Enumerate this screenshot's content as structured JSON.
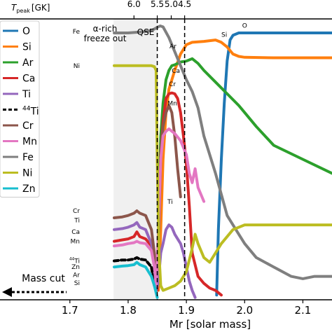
{
  "chart_data": {
    "type": "line",
    "xlabel": "Mr [solar mass]",
    "top_axis": {
      "label_base": "T",
      "label_sub": "peak",
      "label_unit": "[GK]",
      "ticks": [
        {
          "label": "6.0",
          "x": 1.81
        },
        {
          "label": "5.5",
          "x": 1.85
        },
        {
          "label": "5.0",
          "x": 1.874
        },
        {
          "label": "4.5",
          "x": 1.897
        }
      ]
    },
    "xlim": [
      1.58,
      2.15
    ],
    "x_ticks": [
      {
        "label": "1.7",
        "x": 1.7
      },
      {
        "label": "1.8",
        "x": 1.8
      },
      {
        "label": "1.9",
        "x": 1.9
      },
      {
        "label": "2.0",
        "x": 2.0
      },
      {
        "label": "2.1",
        "x": 2.1
      }
    ],
    "y_scale": "log",
    "ylim": [
      -6,
      0
    ],
    "grid": false,
    "legend_placement": "left",
    "shaded_region": {
      "x_start": 1.775,
      "x_end": 1.85,
      "color": "#f0f0f0"
    },
    "vlines": [
      1.85,
      1.897
    ],
    "region_labels": {
      "alpha_rich_line1": "α-rich",
      "alpha_rich_line2": "freeze out",
      "qse": "QSE"
    },
    "mass_cut_label": "Mass cut",
    "left_labels": [
      {
        "label": "Fe",
        "y": -0.27
      },
      {
        "label": "Ni",
        "y": -1.0
      },
      {
        "label": "Cr",
        "y": -4.1
      },
      {
        "label": "Ti",
        "y": -4.3
      },
      {
        "label": "Ca",
        "y": -4.55
      },
      {
        "label": "Mn",
        "y": -4.75
      },
      {
        "label": "44Ti",
        "y": -5.15
      },
      {
        "label": "Zn",
        "y": -5.3
      },
      {
        "label": "Ar",
        "y": -5.47
      },
      {
        "label": "Si",
        "y": -5.64
      }
    ],
    "inline_labels": [
      {
        "label": "O",
        "x": 2.0,
        "y": -0.19
      },
      {
        "label": "Si",
        "x": 1.965,
        "y": -0.38
      },
      {
        "label": "Ar",
        "x": 1.877,
        "y": -0.63
      },
      {
        "label": "Ca",
        "x": 1.882,
        "y": -1.15
      },
      {
        "label": "Cr",
        "x": 1.876,
        "y": -1.44
      },
      {
        "label": "Mn",
        "x": 1.876,
        "y": -1.85
      },
      {
        "label": "Ti",
        "x": 1.872,
        "y": -3.95
      }
    ],
    "series": [
      {
        "name": "O",
        "color": "#1f77b4",
        "dashed": false,
        "x": [
          1.952,
          1.955,
          1.96,
          1.965,
          1.97,
          1.975,
          1.98,
          1.99,
          2.0,
          2.05,
          2.1,
          2.15
        ],
        "y": [
          -5.9,
          -4.5,
          -3.0,
          -1.8,
          -0.9,
          -0.45,
          -0.35,
          -0.3,
          -0.3,
          -0.3,
          -0.3,
          -0.3
        ]
      },
      {
        "name": "Si",
        "color": "#ff7f0e",
        "dashed": false,
        "x": [
          1.852,
          1.856,
          1.86,
          1.865,
          1.87,
          1.88,
          1.89,
          1.9,
          1.91,
          1.93,
          1.95,
          1.96,
          1.97,
          1.98,
          1.99,
          2.0,
          2.05,
          2.1,
          2.15
        ],
        "y": [
          -5.8,
          -4.5,
          -3.0,
          -2.0,
          -1.5,
          -1.1,
          -0.75,
          -0.55,
          -0.5,
          -0.48,
          -0.45,
          -0.5,
          -0.6,
          -0.75,
          -0.8,
          -0.82,
          -0.83,
          -0.83,
          -0.83
        ]
      },
      {
        "name": "Ar",
        "color": "#2ca02c",
        "dashed": false,
        "x": [
          1.85,
          1.853,
          1.856,
          1.86,
          1.865,
          1.87,
          1.875,
          1.88,
          1.885,
          1.89,
          1.9,
          1.91,
          1.92,
          1.93,
          1.95,
          1.97,
          1.99,
          2.0,
          2.02,
          2.05,
          2.1,
          2.15
        ],
        "y": [
          -5.7,
          -4.0,
          -2.5,
          -1.8,
          -1.3,
          -1.1,
          -1.0,
          -0.98,
          -0.95,
          -0.92,
          -0.9,
          -0.85,
          -0.95,
          -1.1,
          -1.35,
          -1.6,
          -1.85,
          -2.0,
          -2.3,
          -2.7,
          -3.0,
          -3.3
        ]
      },
      {
        "name": "Ca",
        "color": "#d62728",
        "dashed": false,
        "x": [
          1.776,
          1.79,
          1.8,
          1.81,
          1.815,
          1.82,
          1.83,
          1.84,
          1.845,
          1.848,
          1.85,
          1.853,
          1.856,
          1.86,
          1.865,
          1.87,
          1.875,
          1.88,
          1.885,
          1.89,
          1.895,
          1.9,
          1.905,
          1.91,
          1.92,
          1.93,
          1.94,
          1.95,
          1.96
        ],
        "y": [
          -4.75,
          -4.72,
          -4.7,
          -4.65,
          -4.55,
          -4.65,
          -4.7,
          -4.85,
          -5.2,
          -5.6,
          -5.8,
          -4.2,
          -2.9,
          -2.2,
          -1.7,
          -1.6,
          -1.58,
          -1.6,
          -1.7,
          -2.0,
          -2.5,
          -3.1,
          -4.0,
          -5.0,
          -5.5,
          -5.65,
          -5.75,
          -5.8,
          -5.9
        ]
      },
      {
        "name": "Ti",
        "color": "#9467bd",
        "dashed": false,
        "x": [
          1.776,
          1.79,
          1.8,
          1.81,
          1.815,
          1.82,
          1.83,
          1.84,
          1.845,
          1.848,
          1.852,
          1.856,
          1.86,
          1.865,
          1.87,
          1.875,
          1.88,
          1.885,
          1.89,
          1.895,
          1.9,
          1.905,
          1.91,
          1.915
        ],
        "y": [
          -4.5,
          -4.48,
          -4.45,
          -4.4,
          -4.35,
          -4.45,
          -4.5,
          -4.8,
          -5.3,
          -5.8,
          -5.6,
          -5.0,
          -4.8,
          -4.5,
          -4.4,
          -4.45,
          -4.6,
          -4.7,
          -4.8,
          -5.0,
          -5.3,
          -5.6,
          -5.8,
          -5.95
        ]
      },
      {
        "name": "44Ti",
        "color": "#000000",
        "dashed": true,
        "x": [
          1.776,
          1.79,
          1.8,
          1.81,
          1.815,
          1.82,
          1.83,
          1.84,
          1.845
        ],
        "y": [
          -5.17,
          -5.15,
          -5.15,
          -5.13,
          -5.1,
          -5.13,
          -5.15,
          -5.3,
          -5.7
        ]
      },
      {
        "name": "Cr",
        "color": "#8c564b",
        "dashed": false,
        "x": [
          1.776,
          1.79,
          1.8,
          1.81,
          1.815,
          1.82,
          1.83,
          1.84,
          1.845,
          1.848,
          1.852,
          1.856,
          1.86,
          1.865,
          1.87,
          1.875,
          1.88,
          1.885,
          1.89
        ],
        "y": [
          -4.25,
          -4.23,
          -4.2,
          -4.15,
          -4.1,
          -4.15,
          -4.2,
          -4.5,
          -5.0,
          -5.6,
          -4.8,
          -3.0,
          -2.3,
          -2.0,
          -1.85,
          -2.0,
          -2.5,
          -3.2,
          -3.8
        ]
      },
      {
        "name": "Mn",
        "color": "#e377c2",
        "dashed": false,
        "x": [
          1.776,
          1.79,
          1.8,
          1.81,
          1.815,
          1.82,
          1.83,
          1.84,
          1.845,
          1.848,
          1.852,
          1.856,
          1.86,
          1.865,
          1.87,
          1.88,
          1.89,
          1.9,
          1.905,
          1.91,
          1.915,
          1.92,
          1.93
        ],
        "y": [
          -4.85,
          -4.83,
          -4.8,
          -4.78,
          -4.75,
          -4.78,
          -4.8,
          -4.95,
          -5.3,
          -5.7,
          -4.5,
          -3.0,
          -2.5,
          -2.4,
          -2.35,
          -2.45,
          -2.6,
          -2.9,
          -3.3,
          -3.5,
          -3.2,
          -3.6,
          -3.9
        ]
      },
      {
        "name": "Fe",
        "color": "#7f7f7f",
        "dashed": false,
        "x": [
          1.776,
          1.79,
          1.8,
          1.81,
          1.82,
          1.83,
          1.84,
          1.85,
          1.855,
          1.86,
          1.87,
          1.88,
          1.89,
          1.9,
          1.91,
          1.92,
          1.93,
          1.95,
          1.97,
          1.99,
          2.0,
          2.02,
          2.05,
          2.08,
          2.1,
          2.12,
          2.15
        ],
        "y": [
          -0.3,
          -0.3,
          -0.3,
          -0.29,
          -0.28,
          -0.27,
          -0.25,
          -0.18,
          -0.15,
          -0.17,
          -0.4,
          -0.7,
          -1.0,
          -1.3,
          -1.55,
          -1.9,
          -2.5,
          -3.3,
          -4.2,
          -4.6,
          -4.8,
          -5.1,
          -5.3,
          -5.5,
          -5.55,
          -5.5,
          -5.5
        ]
      },
      {
        "name": "Ni",
        "color": "#bcbd22",
        "dashed": false,
        "x": [
          1.776,
          1.8,
          1.82,
          1.84,
          1.845,
          1.848,
          1.85,
          1.853,
          1.856,
          1.86,
          1.87,
          1.88,
          1.89,
          1.9,
          1.91,
          1.915,
          1.92,
          1.93,
          1.94,
          1.96,
          1.98,
          2.0,
          2.05,
          2.1,
          2.15
        ],
        "y": [
          -1.0,
          -1.0,
          -1.0,
          -1.0,
          -1.02,
          -1.1,
          -3.0,
          -5.0,
          -5.7,
          -5.8,
          -5.75,
          -5.7,
          -5.6,
          -5.4,
          -4.9,
          -4.6,
          -4.8,
          -5.1,
          -5.2,
          -4.8,
          -4.5,
          -4.4,
          -4.4,
          -4.4,
          -4.4
        ]
      },
      {
        "name": "Zn",
        "color": "#17becf",
        "dashed": false,
        "x": [
          1.776,
          1.79,
          1.8,
          1.81,
          1.815,
          1.82,
          1.83,
          1.84,
          1.845,
          1.848,
          1.85
        ],
        "y": [
          -5.3,
          -5.28,
          -5.27,
          -5.25,
          -5.2,
          -5.25,
          -5.3,
          -5.5,
          -5.7,
          -5.85,
          -5.95
        ]
      }
    ]
  }
}
